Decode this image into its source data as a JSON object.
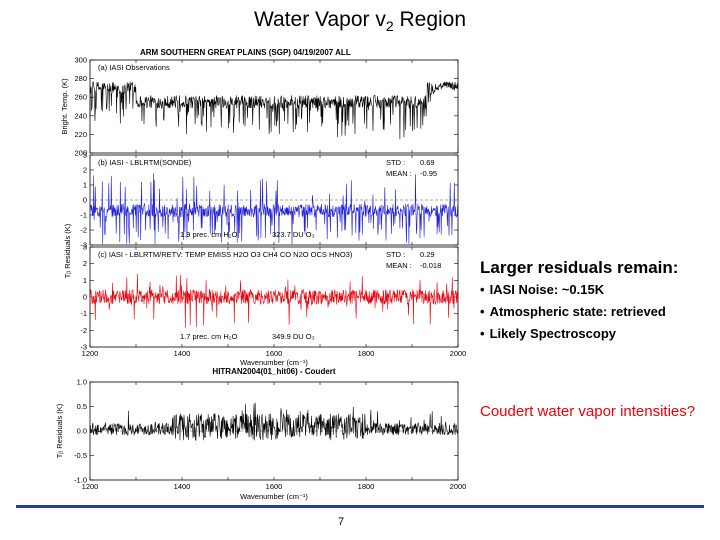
{
  "slide": {
    "title_main": "Water Vapor v",
    "title_sub": "2",
    "title_end": " Region",
    "page_number": "7",
    "callout_heading": "Larger residuals remain:",
    "bullets": [
      "IASI Noise: ~0.15K",
      "Atmospheric state: retrieved",
      "Likely Spectroscopy"
    ],
    "coudert_note": "Coudert water vapor intensities?"
  },
  "figure": {
    "header": "ARM SOUTHERN GREAT PLAINS (SGP)  04/19/2007  ALL",
    "ylabel_a": "Bright. Temp. (K)",
    "ylabel_res": "Tᵦ Residuals (K)",
    "xlabel": "Wavenumber (cm⁻¹)",
    "colors": {
      "a": "#000000",
      "b": "#1f1fd6",
      "c": "#e8000b",
      "d": "#000000",
      "mean_line": "#8c8c8c"
    }
  },
  "chart_data": [
    {
      "type": "line",
      "id": "a",
      "panel_label": "(a) IASI Observations",
      "xlim": [
        1200,
        2000
      ],
      "ylim": [
        200,
        300
      ],
      "yticks": [
        200,
        220,
        240,
        260,
        280,
        300
      ],
      "xticks": [],
      "series": [
        {
          "name": "IASI Observations",
          "color": "#000000"
        }
      ]
    },
    {
      "type": "line",
      "id": "b",
      "panel_label": "(b) IASI - LBLRTM(SONDE)",
      "xlim": [
        1200,
        2000
      ],
      "ylim": [
        -3,
        3
      ],
      "yticks": [
        -3,
        -2,
        -1,
        0,
        1,
        2,
        3
      ],
      "xticks": [],
      "stats": {
        "std_label": "STD  :",
        "std": "0.69",
        "mean_label": "MEAN :",
        "mean": "-0.95"
      },
      "annotations": {
        "left": "1.9 prec. cm H₂O",
        "right": "323.7 DU O₃"
      },
      "series": [
        {
          "name": "IASI - LBLRTM(SONDE)",
          "color": "#1f1fd6"
        }
      ]
    },
    {
      "type": "line",
      "id": "c",
      "panel_label": "(c) IASI - LBLRTM/RETV: TEMP EMISS H2O O3 CH4 CO N2O OCS HNO3)",
      "xlim": [
        1200,
        2000
      ],
      "ylim": [
        -3,
        3
      ],
      "yticks": [
        -3,
        -2,
        -1,
        0,
        1,
        2,
        3
      ],
      "xticks": [
        1200,
        1400,
        1600,
        1800,
        2000
      ],
      "stats": {
        "std_label": "STD  :",
        "std": "0.29",
        "mean_label": "MEAN :",
        "mean": "-0.018"
      },
      "annotations": {
        "left": "1.7 prec. cm H₂O",
        "right": "349.9 DU O₃"
      },
      "series": [
        {
          "name": "IASI - LBLRTM retrieved",
          "color": "#e8000b"
        }
      ]
    },
    {
      "type": "line",
      "id": "d",
      "panel_label": "HITRAN2004(01_hit06) - Coudert",
      "xlim": [
        1200,
        2000
      ],
      "ylim": [
        -1.0,
        1.0
      ],
      "yticks": [
        -1.0,
        -0.5,
        0.0,
        0.5,
        1.0
      ],
      "yticklabels": [
        "-1.0",
        "-0.5",
        "0.0",
        "0.5",
        "1.0"
      ],
      "xticks": [
        1200,
        1400,
        1600,
        1800,
        2000
      ],
      "series": [
        {
          "name": "HITRAN2004 - Coudert",
          "color": "#000000"
        }
      ]
    }
  ]
}
